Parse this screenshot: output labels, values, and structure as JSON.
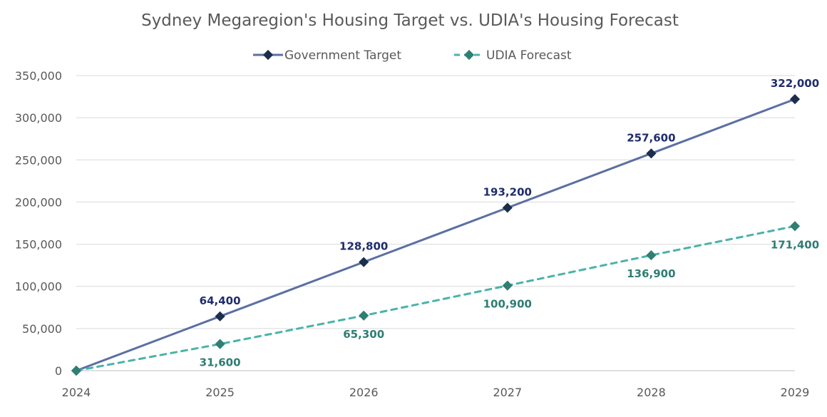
{
  "chart_data": {
    "type": "line",
    "title": "Sydney Megaregion's Housing Target vs. UDIA's Housing Forecast",
    "xlabel": "",
    "ylabel": "",
    "x": [
      "2024",
      "2025",
      "2026",
      "2027",
      "2028",
      "2029"
    ],
    "ylim": [
      0,
      350000
    ],
    "y_ticks": [
      0,
      50000,
      100000,
      150000,
      200000,
      250000,
      300000,
      350000
    ],
    "y_tick_labels": [
      "0",
      "50,000",
      "100,000",
      "150,000",
      "200,000",
      "250,000",
      "300,000",
      "350,000"
    ],
    "grid": true,
    "legend_position": "top",
    "series": [
      {
        "name": "Government Target",
        "values": [
          0,
          64400,
          128800,
          193200,
          257600,
          322000
        ],
        "data_labels": [
          "",
          "64,400",
          "128,800",
          "193,200",
          "257,600",
          "322,000"
        ],
        "line_color": "#5b6fa3",
        "marker_color": "#1b2e4b",
        "label_color": "#1f2d6b",
        "line_style": "solid",
        "label_position": "above"
      },
      {
        "name": "UDIA Forecast",
        "values": [
          0,
          31600,
          65300,
          100900,
          136900,
          171400
        ],
        "data_labels": [
          "",
          "31,600",
          "65,300",
          "100,900",
          "136,900",
          "171,400"
        ],
        "line_color": "#4ab3aa",
        "marker_color": "#2f7f74",
        "label_color": "#2e7d73",
        "line_style": "dashed",
        "label_position": "below"
      }
    ]
  }
}
